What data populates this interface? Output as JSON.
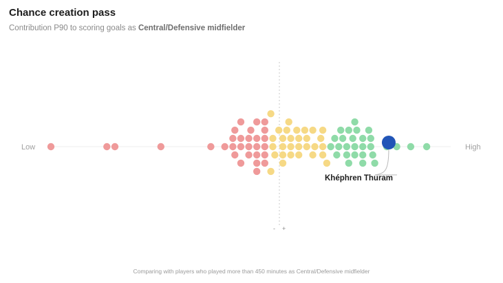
{
  "header": {
    "title": "Chance creation pass",
    "subtitle_prefix": "Contribution P90 to scoring goals as ",
    "subtitle_role": "Central/Defensive midfielder"
  },
  "footer": {
    "note": "Comparing with players who played more than 450 minutes as Central/Defensive midfielder"
  },
  "colors": {
    "low": "#ef9a9a",
    "mid": "#f6d985",
    "high": "#8fdba8",
    "highlight": "#2155b7",
    "text_low_high": "#a0a0a0",
    "baseline": "#ececec",
    "center_line": "#c8c8c8"
  },
  "chart_data": {
    "type": "scatter",
    "title": "Chance creation pass",
    "xlabel_low": "Low",
    "xlabel_high": "High",
    "center_minus": "-",
    "center_plus": "+",
    "xlim": [
      0,
      100
    ],
    "highlight": {
      "name": "Khéphren Thuram",
      "x": 84.5
    },
    "points": [
      {
        "x": 0,
        "g": "low"
      },
      {
        "x": 14,
        "g": "low"
      },
      {
        "x": 16,
        "g": "low"
      },
      {
        "x": 27.5,
        "g": "low"
      },
      {
        "x": 40,
        "g": "low"
      },
      {
        "x": 43.5,
        "g": "low"
      },
      {
        "x": 45.5,
        "g": "low"
      },
      {
        "x": 45.5,
        "g": "low"
      },
      {
        "x": 46,
        "g": "low"
      },
      {
        "x": 46,
        "g": "low"
      },
      {
        "x": 47.5,
        "g": "low"
      },
      {
        "x": 47.5,
        "g": "low"
      },
      {
        "x": 47.5,
        "g": "low"
      },
      {
        "x": 47.5,
        "g": "low"
      },
      {
        "x": 49.5,
        "g": "low"
      },
      {
        "x": 49.5,
        "g": "low"
      },
      {
        "x": 49.5,
        "g": "low"
      },
      {
        "x": 50,
        "g": "low"
      },
      {
        "x": 51.5,
        "g": "low"
      },
      {
        "x": 51.5,
        "g": "low"
      },
      {
        "x": 51.5,
        "g": "low"
      },
      {
        "x": 51.5,
        "g": "low"
      },
      {
        "x": 51.5,
        "g": "low"
      },
      {
        "x": 51.5,
        "g": "low"
      },
      {
        "x": 53.5,
        "g": "low"
      },
      {
        "x": 53.5,
        "g": "low"
      },
      {
        "x": 53.5,
        "g": "low"
      },
      {
        "x": 53.5,
        "g": "low"
      },
      {
        "x": 53.5,
        "g": "low"
      },
      {
        "x": 53.5,
        "g": "low"
      },
      {
        "x": 55,
        "g": "mid"
      },
      {
        "x": 55,
        "g": "mid"
      },
      {
        "x": 55.5,
        "g": "mid"
      },
      {
        "x": 55.5,
        "g": "mid"
      },
      {
        "x": 56,
        "g": "mid"
      },
      {
        "x": 57,
        "g": "mid"
      },
      {
        "x": 58,
        "g": "mid"
      },
      {
        "x": 58,
        "g": "mid"
      },
      {
        "x": 58,
        "g": "mid"
      },
      {
        "x": 58,
        "g": "mid"
      },
      {
        "x": 59,
        "g": "mid"
      },
      {
        "x": 59.5,
        "g": "mid"
      },
      {
        "x": 60,
        "g": "mid"
      },
      {
        "x": 60,
        "g": "mid"
      },
      {
        "x": 60,
        "g": "mid"
      },
      {
        "x": 61.5,
        "g": "mid"
      },
      {
        "x": 62,
        "g": "mid"
      },
      {
        "x": 62,
        "g": "mid"
      },
      {
        "x": 62,
        "g": "mid"
      },
      {
        "x": 63.5,
        "g": "mid"
      },
      {
        "x": 64,
        "g": "mid"
      },
      {
        "x": 64,
        "g": "mid"
      },
      {
        "x": 65.5,
        "g": "mid"
      },
      {
        "x": 65.5,
        "g": "mid"
      },
      {
        "x": 66,
        "g": "mid"
      },
      {
        "x": 67.5,
        "g": "mid"
      },
      {
        "x": 68,
        "g": "mid"
      },
      {
        "x": 68,
        "g": "mid"
      },
      {
        "x": 68,
        "g": "mid"
      },
      {
        "x": 69,
        "g": "mid"
      },
      {
        "x": 70,
        "g": "high"
      },
      {
        "x": 71,
        "g": "high"
      },
      {
        "x": 71.5,
        "g": "high"
      },
      {
        "x": 72,
        "g": "high"
      },
      {
        "x": 72.5,
        "g": "high"
      },
      {
        "x": 73,
        "g": "high"
      },
      {
        "x": 74,
        "g": "high"
      },
      {
        "x": 74,
        "g": "high"
      },
      {
        "x": 74.5,
        "g": "high"
      },
      {
        "x": 74.5,
        "g": "high"
      },
      {
        "x": 75.5,
        "g": "high"
      },
      {
        "x": 76,
        "g": "high"
      },
      {
        "x": 76,
        "g": "high"
      },
      {
        "x": 76,
        "g": "high"
      },
      {
        "x": 76.5,
        "g": "high"
      },
      {
        "x": 78,
        "g": "high"
      },
      {
        "x": 78,
        "g": "high"
      },
      {
        "x": 78,
        "g": "high"
      },
      {
        "x": 78,
        "g": "high"
      },
      {
        "x": 79.5,
        "g": "high"
      },
      {
        "x": 80,
        "g": "high"
      },
      {
        "x": 80,
        "g": "high"
      },
      {
        "x": 80.5,
        "g": "high"
      },
      {
        "x": 81,
        "g": "high"
      },
      {
        "x": 84,
        "g": "high"
      },
      {
        "x": 86.5,
        "g": "high"
      },
      {
        "x": 90,
        "g": "high"
      },
      {
        "x": 94,
        "g": "high"
      }
    ]
  }
}
